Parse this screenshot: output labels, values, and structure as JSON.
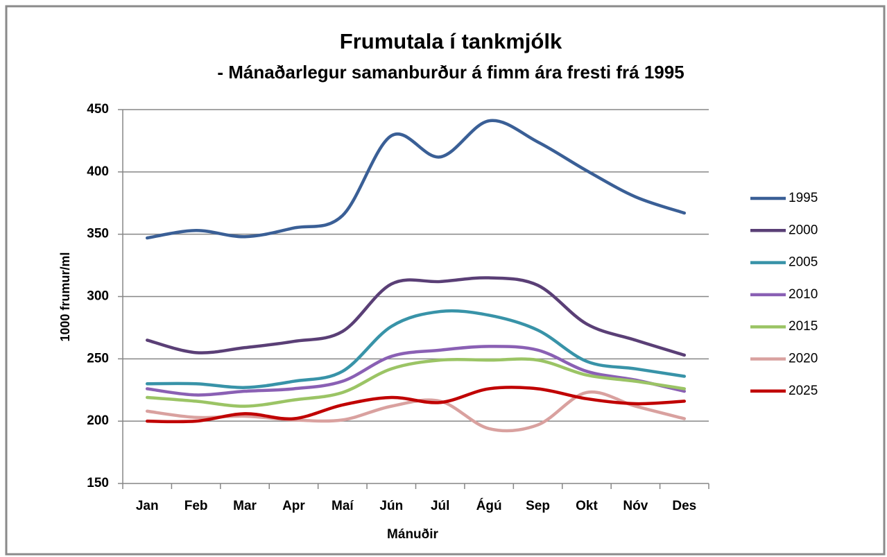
{
  "chart_data": {
    "type": "line",
    "title": "Frumutala í tankmjólk",
    "subtitle": "- Mánaðarlegur samanburður á fimm ára fresti frá 1995",
    "x_label": "Mánuðir",
    "y_label": "1000 frumur/ml",
    "categories": [
      "Jan",
      "Feb",
      "Mar",
      "Apr",
      "Maí",
      "Jún",
      "Júl",
      "Ágú",
      "Sep",
      "Okt",
      "Nóv",
      "Des"
    ],
    "ylim": [
      150,
      450
    ],
    "yticks": [
      150,
      200,
      250,
      300,
      350,
      400,
      450
    ],
    "grid": true,
    "smooth": true,
    "legend": "right",
    "series": [
      {
        "name": "1995",
        "color": "#3a5f96",
        "values": [
          347,
          353,
          348,
          355,
          365,
          429,
          412,
          441,
          424,
          401,
          380,
          367
        ]
      },
      {
        "name": "2000",
        "color": "#5a3f76",
        "values": [
          265,
          255,
          259,
          264,
          272,
          310,
          312,
          315,
          309,
          278,
          265,
          253
        ]
      },
      {
        "name": "2005",
        "color": "#3893a8",
        "values": [
          230,
          230,
          227,
          232,
          240,
          276,
          288,
          285,
          273,
          248,
          242,
          236
        ]
      },
      {
        "name": "2010",
        "color": "#8a60b4",
        "values": [
          226,
          221,
          224,
          226,
          232,
          252,
          257,
          260,
          257,
          240,
          233,
          224
        ]
      },
      {
        "name": "2015",
        "color": "#9bc465",
        "values": [
          219,
          216,
          212,
          217,
          223,
          242,
          249,
          249,
          249,
          237,
          232,
          226
        ]
      },
      {
        "name": "2020",
        "color": "#d9a19f",
        "values": [
          208,
          203,
          204,
          201,
          201,
          212,
          216,
          194,
          197,
          223,
          212,
          202
        ]
      },
      {
        "name": "2025",
        "color": "#c00000",
        "values": [
          200,
          200,
          206,
          202,
          213,
          219,
          215,
          226,
          226,
          218,
          214,
          216
        ]
      }
    ]
  }
}
